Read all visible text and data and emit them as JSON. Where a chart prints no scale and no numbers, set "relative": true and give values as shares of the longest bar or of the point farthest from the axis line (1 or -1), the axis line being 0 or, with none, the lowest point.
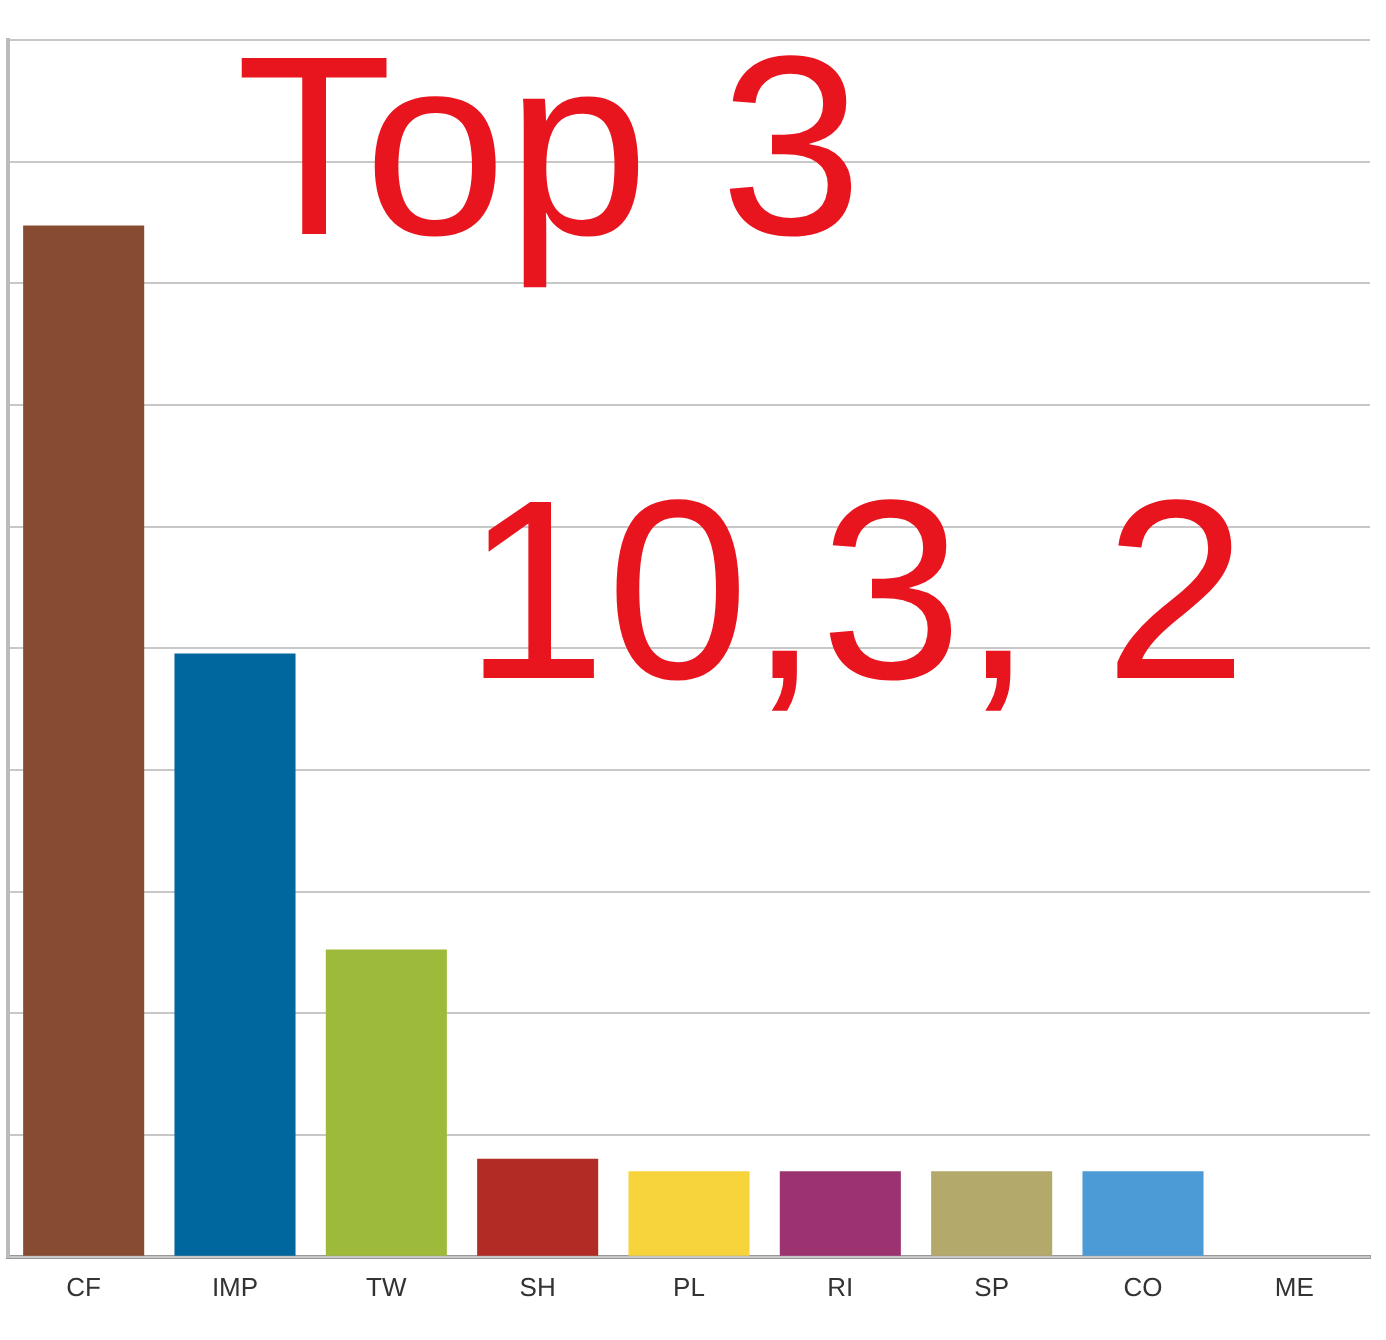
{
  "chart_data": {
    "type": "bar",
    "relative": true,
    "grid": "y",
    "categories": [
      "CF",
      "IMP",
      "TW",
      "SH",
      "PL",
      "RI",
      "SP",
      "CO",
      "ME"
    ],
    "values": [
      1,
      0.585,
      0.298,
      0.095,
      0.083,
      0.083,
      0.083,
      0.083,
      0
    ],
    "colors": [
      "#874b31",
      "#00679e",
      "#9dba3b",
      "#b02c24",
      "#f8d43c",
      "#9c3270",
      "#b3a96b",
      "#4c9bd7",
      "#999999"
    ],
    "annotations": [
      "Top  3",
      "10,3, 2"
    ]
  }
}
